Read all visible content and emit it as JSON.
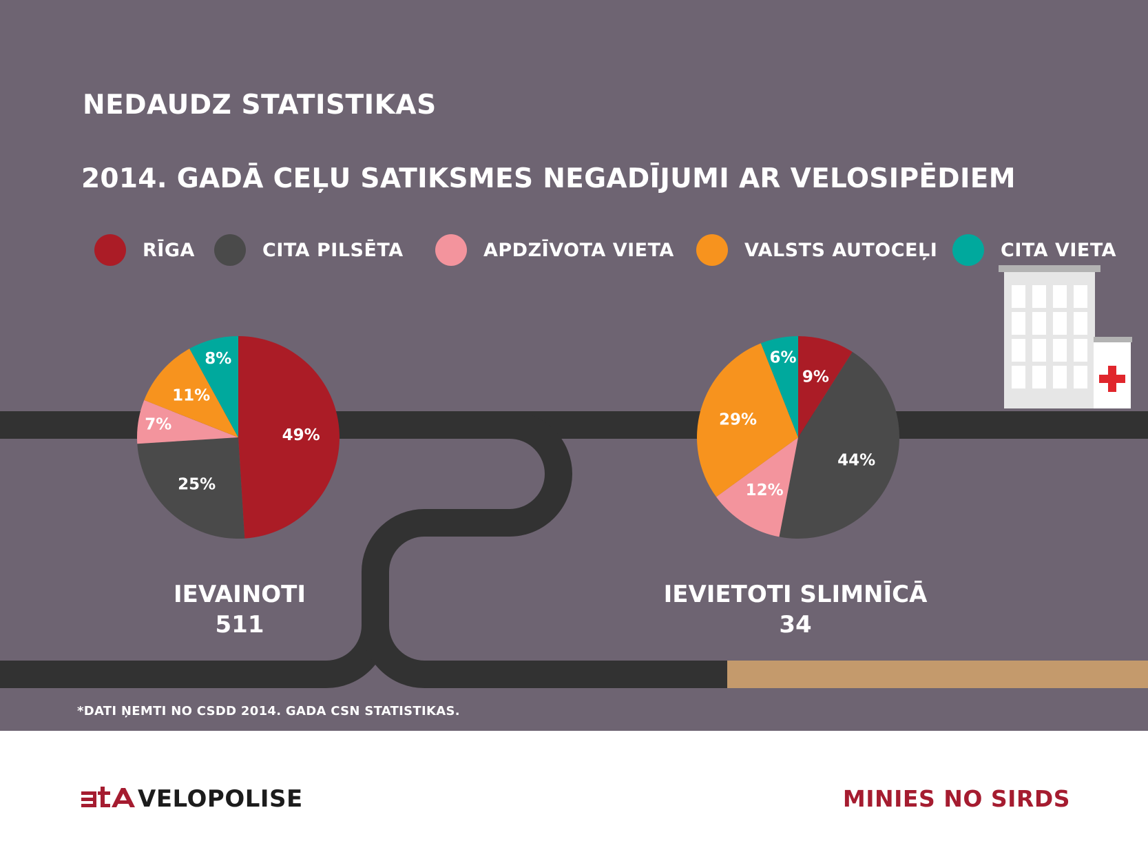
{
  "header": {
    "title": "NEDAUDZ STATISTIKAS",
    "subtitle": "2014. GADĀ CEĻU SATIKSMES NEGADĪJUMI AR VELOSIPĒDIEM"
  },
  "legend": [
    {
      "label": "RĪGA",
      "color": "#ab1c26"
    },
    {
      "label": "CITA PILSĒTA",
      "color": "#4a4a4a"
    },
    {
      "label": "APDZĪVOTA VIETA",
      "color": "#f3949d"
    },
    {
      "label": "VALSTS AUTOCEĻI",
      "color": "#f7931e"
    },
    {
      "label": "CITA VIETA",
      "color": "#00a99d"
    }
  ],
  "chart_data": [
    {
      "type": "pie",
      "title": "IEVAINOTI",
      "total": "511",
      "categories": [
        "RĪGA",
        "CITA PILSĒTA",
        "APDZĪVOTA VIETA",
        "VALSTS AUTOCEĻI",
        "CITA VIETA"
      ],
      "values": [
        49,
        25,
        7,
        11,
        8
      ],
      "labels": [
        "49%",
        "25%",
        "7%",
        "11%",
        "8%"
      ]
    },
    {
      "type": "pie",
      "title": "IEVIETOTI SLIMNĪCĀ",
      "total": "34",
      "categories": [
        "RĪGA",
        "CITA PILSĒTA",
        "APDZĪVOTA VIETA",
        "VALSTS AUTOCEĻI",
        "CITA VIETA"
      ],
      "values": [
        9,
        44,
        12,
        29,
        6
      ],
      "labels": [
        "9%",
        "44%",
        "12%",
        "29%",
        "6%"
      ]
    }
  ],
  "footnote": "*DATI ŅEMTI NO CSDD 2014. GADA CSN STATISTIKAS.",
  "footer": {
    "brand": "VELOPOLISE",
    "brand_mark": "bta",
    "slogan": "MINIES NO SIRDS"
  },
  "colors": {
    "background": "#6e6472",
    "road": "#323232",
    "road_end": "#c49a6c",
    "building": "#e6e6e6",
    "window": "#ffffff",
    "cross": "#e0262c"
  }
}
